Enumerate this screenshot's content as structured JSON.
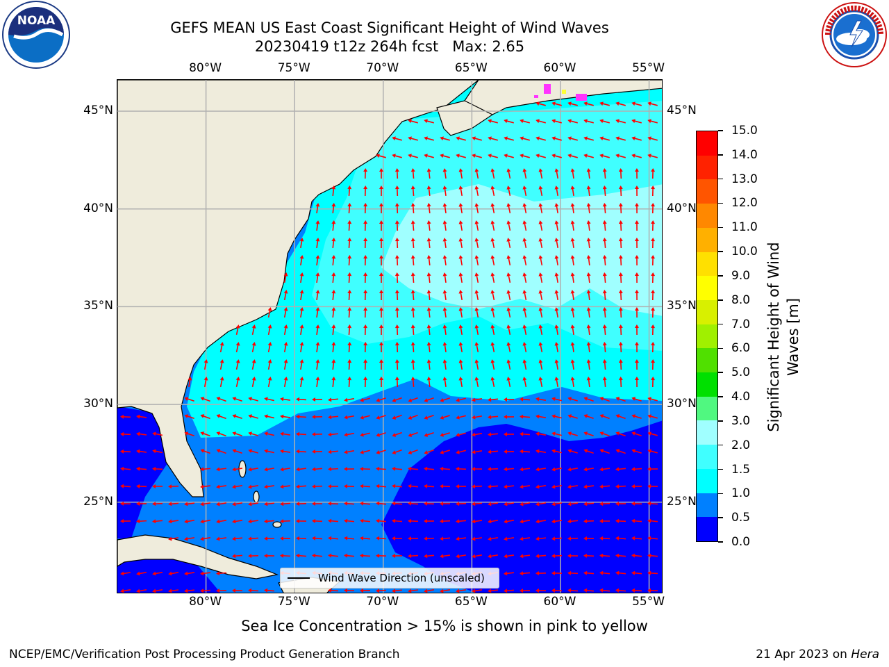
{
  "header": {
    "title_line1": "GEFS MEAN US East Coast Significant Height of Wind Waves",
    "title_line2": "20230419 t12z 264h fcst   Max: 2.65"
  },
  "logos": {
    "noaa": {
      "text": "NOAA",
      "ring_text": "NATIONAL OCEANIC AND ATMOSPHERIC ADMINISTRATION · U.S. DEPARTMENT OF COMMERCE"
    },
    "nws": {
      "ring_text": "NATIONAL WEATHER SERVICE"
    }
  },
  "map": {
    "lon_ticks": [
      "80°W",
      "75°W",
      "70°W",
      "65°W",
      "60°W",
      "55°W"
    ],
    "lat_ticks": [
      "45°N",
      "40°N",
      "35°N",
      "30°N",
      "25°N"
    ],
    "extent": {
      "lon_min": -85,
      "lon_max": -54.2,
      "lat_min": 20.3,
      "lat_max": 46.6
    },
    "colors": {
      "land": "#efecdc",
      "grid": "#b0b0b0",
      "arrow": "#ff0000",
      "ice_pink": "#ff33ff",
      "ice_yellow": "#ffff33"
    }
  },
  "colorbar": {
    "title_line1": "Significant Height of Wind",
    "title_line2": "Waves [m]",
    "labels": [
      "0.0",
      "0.5",
      "1.0",
      "1.5",
      "2.0",
      "3.0",
      "4.0",
      "5.0",
      "6.0",
      "7.0",
      "8.0",
      "9.0",
      "10.0",
      "11.0",
      "12.0",
      "13.0",
      "14.0",
      "15.0"
    ],
    "colors": [
      "#0000ff",
      "#0080ff",
      "#00ffff",
      "#40ffff",
      "#a0ffff",
      "#50f880",
      "#00e000",
      "#50e000",
      "#a0f000",
      "#d8f000",
      "#ffff00",
      "#ffe000",
      "#ffb000",
      "#ff8800",
      "#ff5500",
      "#ff2200",
      "#ff0000"
    ]
  },
  "legend": {
    "label": "Wind Wave Direction (unscaled)"
  },
  "footer": {
    "ice_note": "Sea Ice Concentration > 15% is shown in pink to yellow",
    "left": "NCEP/EMC/Verification Post Processing Product Generation Branch",
    "right_date": "21 Apr 2023 on ",
    "right_machine": "Hera"
  }
}
